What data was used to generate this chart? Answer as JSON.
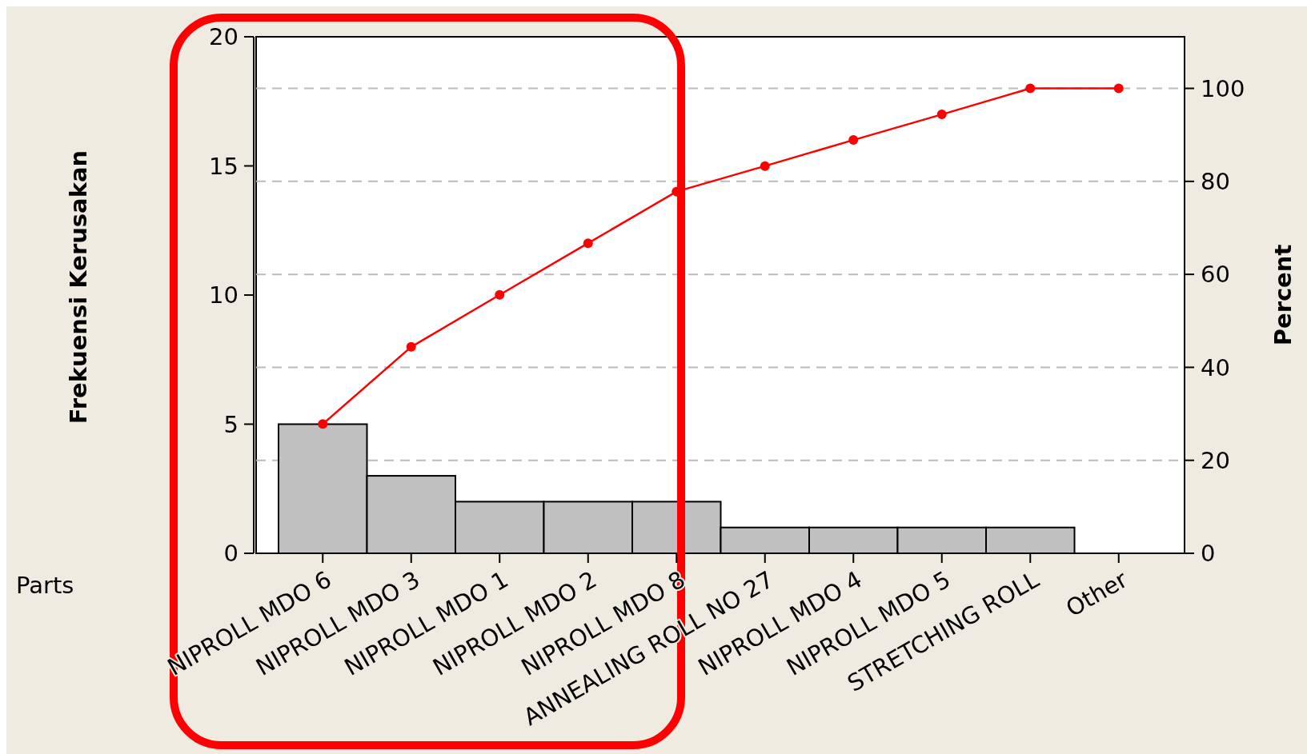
{
  "chart_data": {
    "type": "bar",
    "xlabel": "Parts",
    "ylabel": "Frekuensi Kerusakan",
    "y2label": "Percent",
    "categories": [
      "NIPROLL MDO 6",
      "NIPROLL MDO 3",
      "NIPROLL MDO 1",
      "NIPROLL MDO 2",
      "NIPROLL MDO 8",
      "ANNEALING ROLL NO 27",
      "NIPROLL MDO 4",
      "NIPROLL MDO 5",
      "STRETCHING ROLL",
      "Other"
    ],
    "series": [
      {
        "color": "#c0c0c0",
        "values": [
          5,
          3,
          2,
          2,
          2,
          1,
          1,
          1,
          1,
          0
        ]
      },
      {
        "type": "line",
        "axis": "y2",
        "color": "#ff0000",
        "values": [
          27.8,
          44.4,
          55.6,
          66.7,
          77.8,
          83.3,
          88.9,
          94.4,
          100,
          100
        ]
      }
    ],
    "ylim": [
      0,
      20
    ],
    "yticks": [
      0,
      5,
      10,
      15,
      20
    ],
    "y2lim": [
      0,
      111.1
    ],
    "y2ticks": [
      0,
      20,
      40,
      60,
      80,
      100
    ],
    "grid": "y2",
    "marker": "circle",
    "line_style": "solid"
  }
}
